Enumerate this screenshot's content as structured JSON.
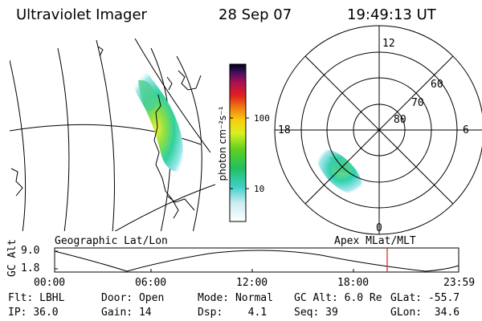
{
  "header": {
    "title": "Ultraviolet Imager",
    "date": "28 Sep 07",
    "time": "19:49:13 UT"
  },
  "geo_panel": {
    "label": "Geographic Lat/Lon"
  },
  "polar_panel": {
    "label": "Apex MLat/MLT",
    "mlt_labels": [
      "12",
      "18",
      "6",
      "0"
    ],
    "lat_labels": [
      "60",
      "70",
      "80"
    ]
  },
  "colorbar": {
    "label": "photon cm⁻²s⁻¹",
    "ticks": [
      "100",
      "10"
    ]
  },
  "altitude_strip": {
    "ylabel": "GC Alt",
    "y_ticks": [
      "9.0",
      "1.8"
    ],
    "time_ticks": [
      "00:00",
      "06:00",
      "12:00",
      "18:00",
      "23:59"
    ],
    "marker_color": "#d62020"
  },
  "status": {
    "row1": [
      {
        "label": "Flt:",
        "value": "LBHL"
      },
      {
        "label": "Door:",
        "value": "Open"
      },
      {
        "label": "Mode:",
        "value": "Normal"
      },
      {
        "label": "GC Alt:",
        "value": "6.0 Re"
      },
      {
        "label": "GLat:",
        "value": "-55.7"
      }
    ],
    "row2": [
      {
        "label": "IP:",
        "value": "36.0"
      },
      {
        "label": "Gain:",
        "value": "14"
      },
      {
        "label": "Dsp:",
        "value": "4.1"
      },
      {
        "label": "Seq:",
        "value": "39"
      },
      {
        "label": "GLon:",
        "value": "34.6"
      }
    ]
  }
}
